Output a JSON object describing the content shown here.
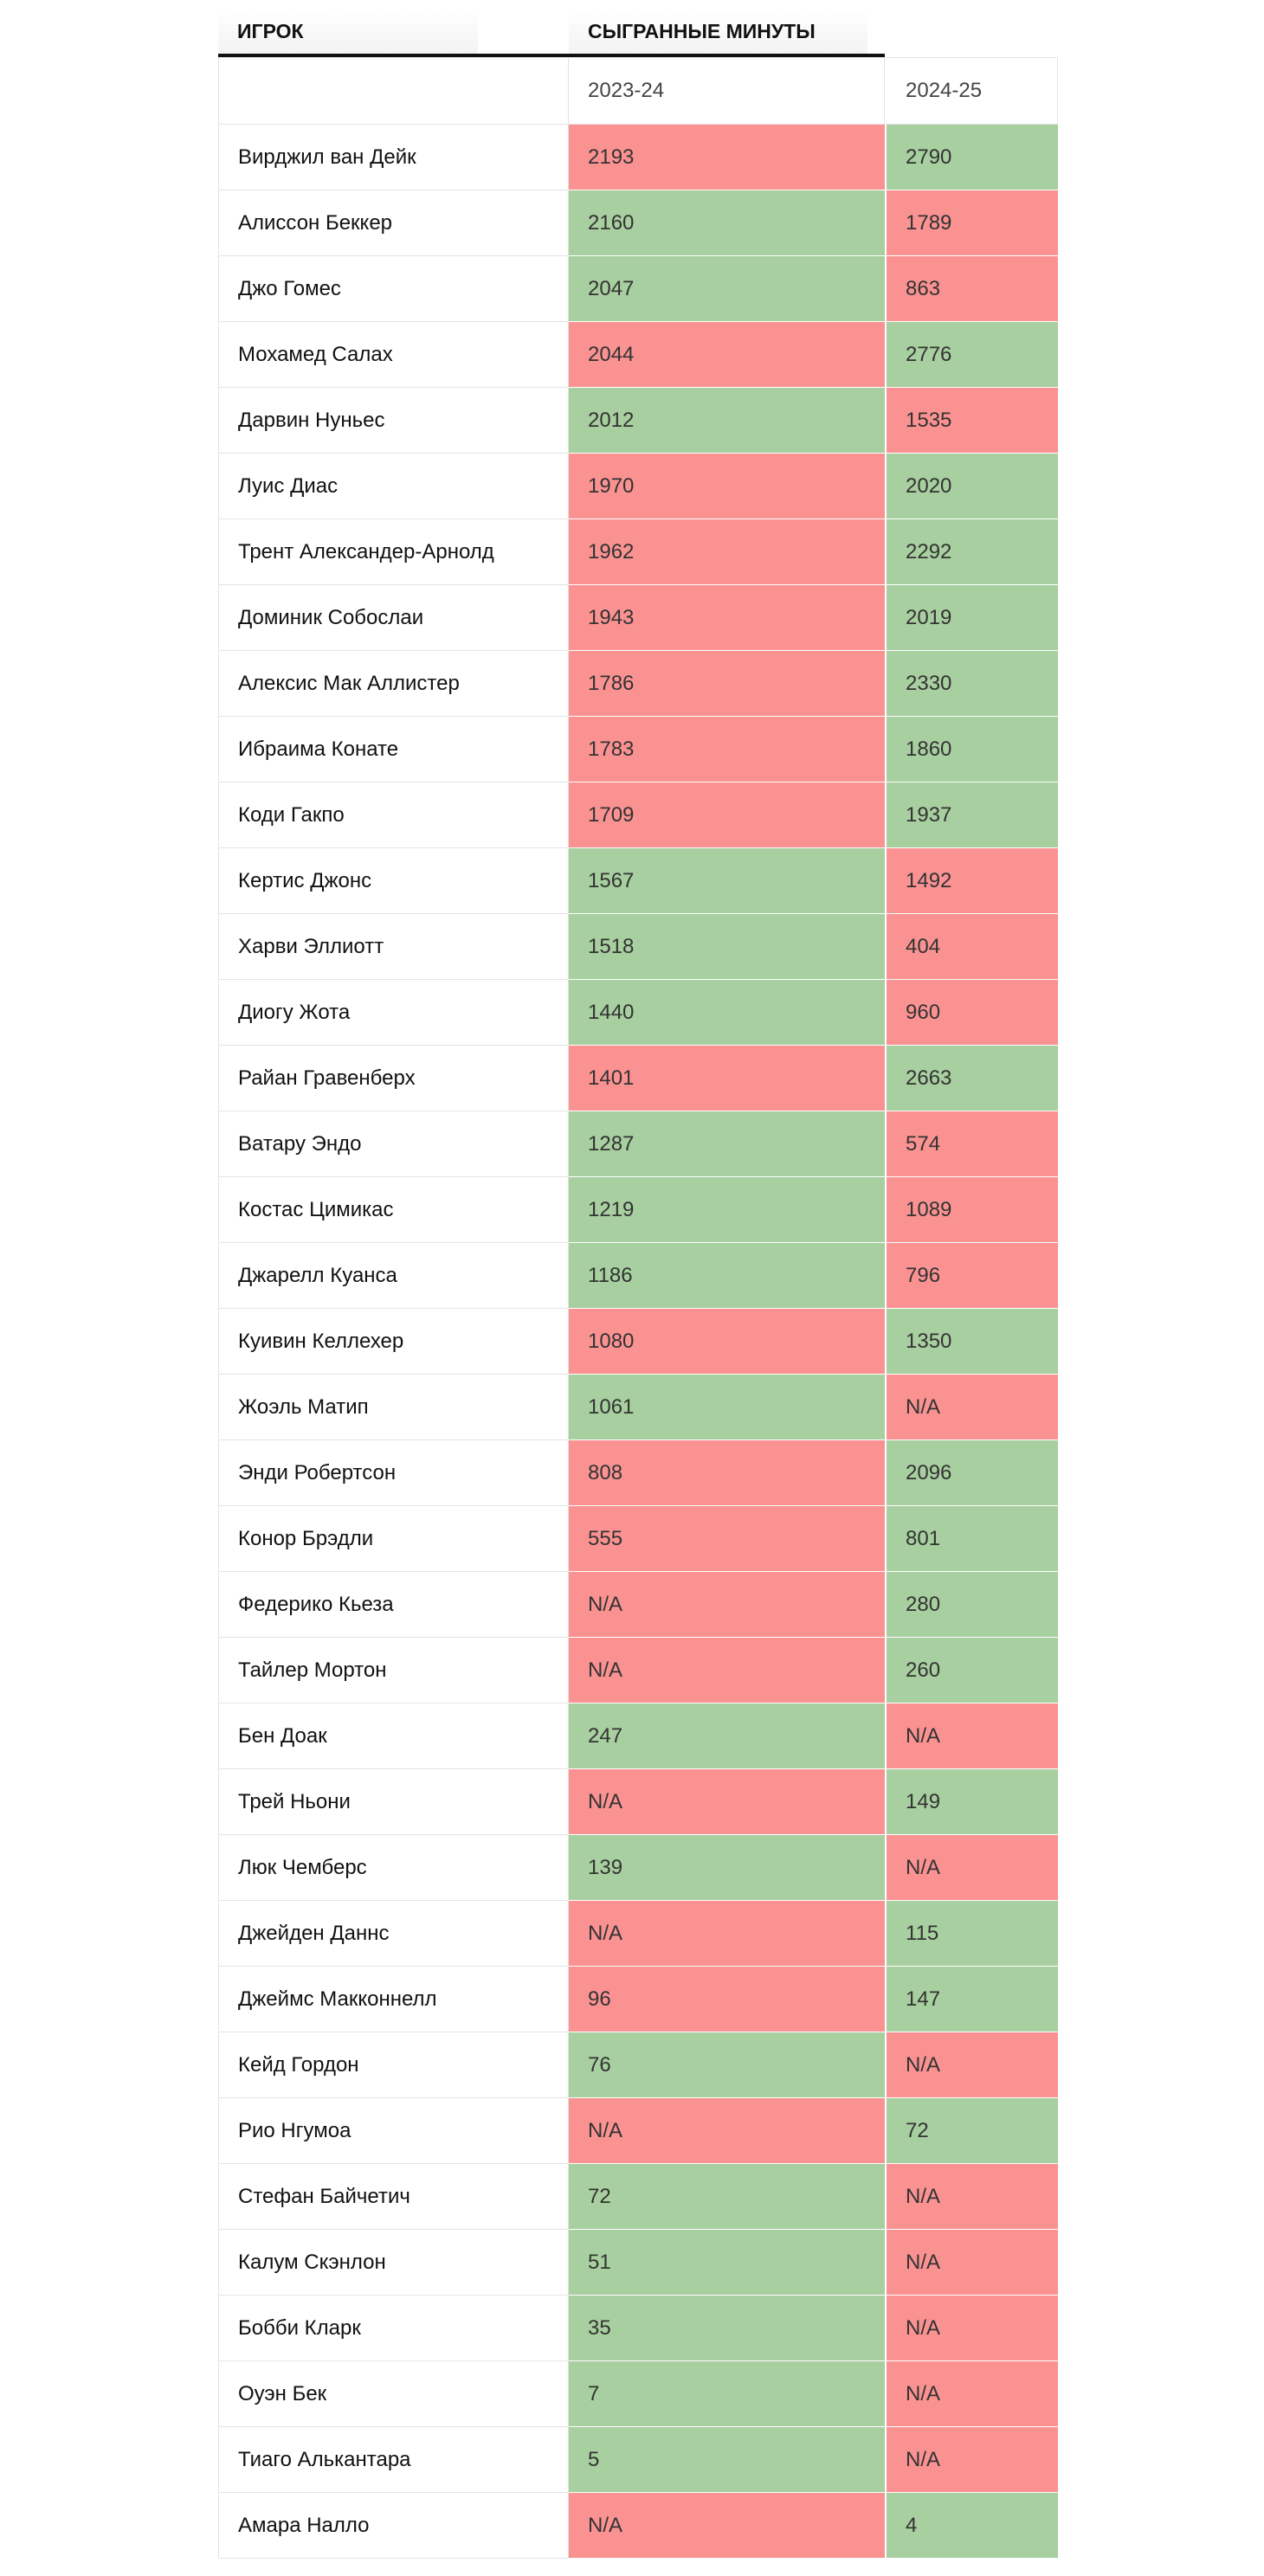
{
  "table": {
    "header": [
      "ИГРОК",
      "СЫГРАННЫЕ МИНУТЫ"
    ],
    "subheader": [
      "2023-24",
      "2024-25"
    ],
    "rows": [
      [
        "Вирджил ван Дейк",
        2193,
        2790
      ],
      [
        "Алиссон Беккер",
        2160,
        1789
      ],
      [
        "Джо Гомес",
        2047,
        863
      ],
      [
        "Мохамед Салах",
        2044,
        2776
      ],
      [
        "Дарвин Нуньес",
        2012,
        1535
      ],
      [
        "Луис Диас",
        1970,
        2020
      ],
      [
        "Трент Александер-Арнолд",
        1962,
        2292
      ],
      [
        "Доминик Собослаи",
        1943,
        2019
      ],
      [
        "Алексис Мак Аллистер",
        1786,
        2330
      ],
      [
        "Ибраима Конате",
        1783,
        1860
      ],
      [
        "Коди Гакпо",
        1709,
        1937
      ],
      [
        "Кертис Джонс",
        1567,
        1492
      ],
      [
        "Харви Эллиотт",
        1518,
        404
      ],
      [
        "Диогу Жота",
        1440,
        960
      ],
      [
        "Райан Гравенберх",
        1401,
        2663
      ],
      [
        "Ватару Эндо",
        1287,
        574
      ],
      [
        "Костас Цимикас",
        1219,
        1089
      ],
      [
        "Джарелл Куанса",
        1186,
        796
      ],
      [
        "Куивин Келлехер",
        1080,
        1350
      ],
      [
        "Жоэль Матип",
        1061,
        "N/A"
      ],
      [
        "Энди Робертсон",
        808,
        2096
      ],
      [
        "Конор Брэдли",
        555,
        801
      ],
      [
        "Федерико Кьеза",
        "N/A",
        280
      ],
      [
        "Тайлер Мортон",
        "N/A",
        260
      ],
      [
        "Бен Доак",
        247,
        "N/A"
      ],
      [
        "Трей Ньони",
        "N/A",
        149
      ],
      [
        "Люк Чемберс",
        139,
        "N/A"
      ],
      [
        "Джейден Даннс",
        "N/A",
        115
      ],
      [
        "Джеймс Макконнелл",
        96,
        147
      ],
      [
        "Кейд Гордон",
        76,
        "N/A"
      ],
      [
        "Рио Нгумоа",
        "N/A",
        72
      ],
      [
        "Стефан Байчетич",
        72,
        "N/A"
      ],
      [
        "Калум Скэнлон",
        51,
        "N/A"
      ],
      [
        "Бобби Кларк",
        35,
        "N/A"
      ],
      [
        "Оуэн Бек",
        7,
        "N/A"
      ],
      [
        "Тиаго Алькантара",
        5,
        "N/A"
      ],
      [
        "Амара Налло",
        "N/A",
        4
      ]
    ]
  }
}
